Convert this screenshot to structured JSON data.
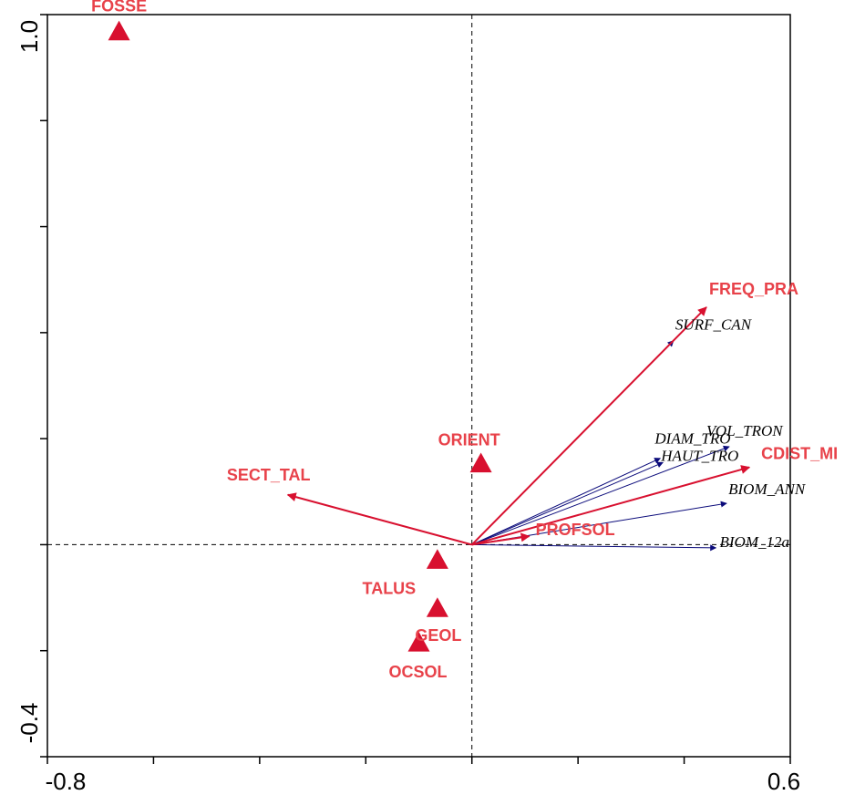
{
  "chart_data": {
    "type": "scatter",
    "title": "",
    "xlabel": "",
    "ylabel": "",
    "xlim": [
      -0.8,
      0.6
    ],
    "ylim": [
      -0.4,
      1.0
    ],
    "x_tick_labels": [
      "-0.8",
      "0.6"
    ],
    "y_tick_labels": [
      "1.0",
      "-0.4"
    ],
    "grid": false,
    "reference_lines": "dashed lines at x=0 and y=0",
    "colors": {
      "environment": "#d8102f",
      "response": "#0a0a7a",
      "axes": "#000000"
    },
    "environment_arrows": [
      {
        "name": "FREQ_PRA",
        "x": 0.442,
        "y": 0.448
      },
      {
        "name": "CDIST_MI",
        "x": 0.523,
        "y": 0.146
      },
      {
        "name": "SECT_TAL",
        "x": -0.347,
        "y": 0.094
      },
      {
        "name": "PROFSOL",
        "x": 0.108,
        "y": 0.016
      }
    ],
    "response_arrows": [
      {
        "name": "SURF_CAN",
        "x": 0.38,
        "y": 0.385
      },
      {
        "name": "DIAM_TRO",
        "x": 0.355,
        "y": 0.163
      },
      {
        "name": "VOL_TRON",
        "x": 0.485,
        "y": 0.185
      },
      {
        "name": "HAUT_TRO",
        "x": 0.36,
        "y": 0.155
      },
      {
        "name": "BIOM_ANN",
        "x": 0.48,
        "y": 0.078
      },
      {
        "name": "BIOM_12a",
        "x": 0.46,
        "y": -0.006
      }
    ],
    "centroids": [
      {
        "name": "FOSSE",
        "x": -0.665,
        "y": 0.968
      },
      {
        "name": "ORIENT",
        "x": 0.017,
        "y": 0.153
      },
      {
        "name": "TALUS",
        "x": -0.065,
        "y": -0.029
      },
      {
        "name": "GEOL",
        "x": -0.065,
        "y": -0.12
      },
      {
        "name": "OCSOL",
        "x": -0.1,
        "y": -0.185
      }
    ]
  }
}
